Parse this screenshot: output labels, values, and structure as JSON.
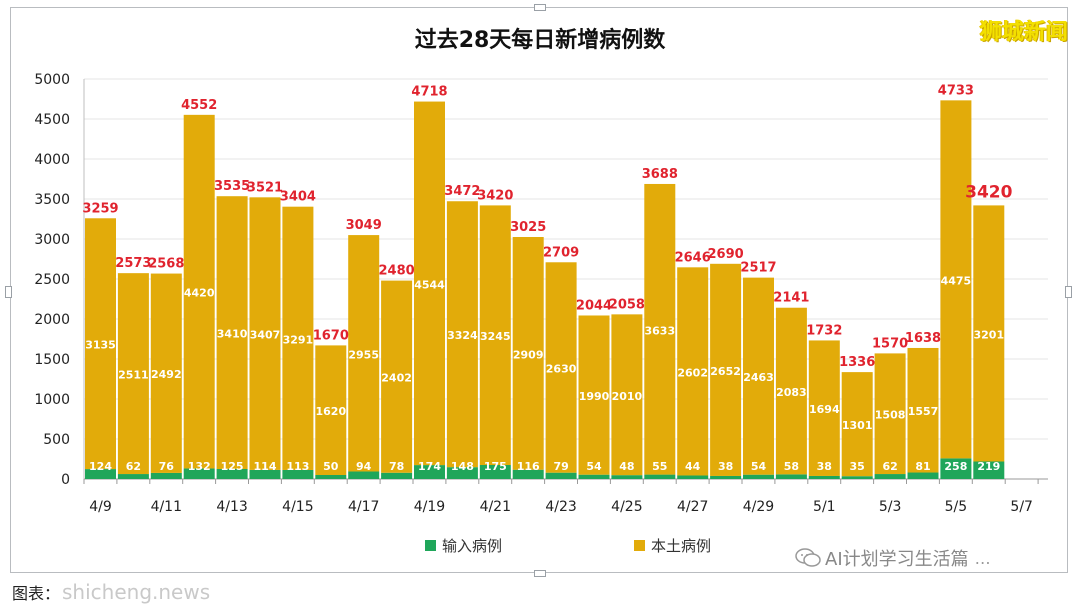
{
  "brand": "狮城新闻",
  "watermark": "AI计划学习生活篇",
  "watermark_handle": "…",
  "source_label": "图表：",
  "source_watermark": "shicheng.news",
  "colors": {
    "imported": "#1fa65a",
    "local": "#e2ab0a",
    "total_label": "#e0232e",
    "segment_label": "#ffffff"
  },
  "chart_data": {
    "type": "bar",
    "stacked": true,
    "title": "过去28天每日新增病例数",
    "categories": [
      "4/9",
      "4/10",
      "4/11",
      "4/12",
      "4/13",
      "4/14",
      "4/15",
      "4/16",
      "4/17",
      "4/18",
      "4/19",
      "4/20",
      "4/21",
      "4/22",
      "4/23",
      "4/24",
      "4/25",
      "4/26",
      "4/27",
      "4/28",
      "4/29",
      "4/30",
      "5/1",
      "5/2",
      "5/3",
      "5/4",
      "5/5",
      "5/6",
      "5/7"
    ],
    "x_tick_labels": [
      "4/9",
      "4/11",
      "4/13",
      "4/15",
      "4/17",
      "4/19",
      "4/21",
      "4/23",
      "4/25",
      "4/27",
      "4/29",
      "5/1",
      "5/3",
      "5/5",
      "5/7"
    ],
    "series": [
      {
        "name": "输入病例",
        "color": "#1fa65a",
        "values": [
          124,
          62,
          76,
          132,
          125,
          114,
          113,
          50,
          94,
          78,
          174,
          148,
          175,
          116,
          79,
          54,
          48,
          55,
          44,
          38,
          54,
          58,
          38,
          35,
          62,
          81,
          258,
          219,
          null
        ]
      },
      {
        "name": "本土病例",
        "color": "#e2ab0a",
        "values": [
          3135,
          2511,
          2492,
          4420,
          3410,
          3407,
          3291,
          1620,
          2955,
          2402,
          4544,
          3324,
          3245,
          2909,
          2630,
          1990,
          2010,
          3633,
          2602,
          2652,
          2463,
          2083,
          1694,
          1301,
          1508,
          1557,
          4475,
          3201,
          null
        ]
      }
    ],
    "totals": [
      "3259",
      "2573",
      "2568",
      "4552",
      "3535",
      "3521",
      "3404",
      "1670",
      "3049",
      "2480",
      "4718",
      "3472",
      "3420",
      "3025",
      "2709",
      "2044",
      "2058",
      "3688",
      "2646",
      "2690",
      "2517",
      "2141",
      "1732",
      "1336",
      "1570",
      "1638",
      "4733",
      "3420",
      ""
    ],
    "highlight_index": 27,
    "y_ticks": [
      "0",
      "500",
      "1000",
      "1500",
      "2000",
      "2500",
      "3000",
      "3500",
      "4000",
      "4500",
      "5000"
    ],
    "ylim": [
      0,
      5000
    ],
    "grid": true,
    "legend": "bottom"
  }
}
